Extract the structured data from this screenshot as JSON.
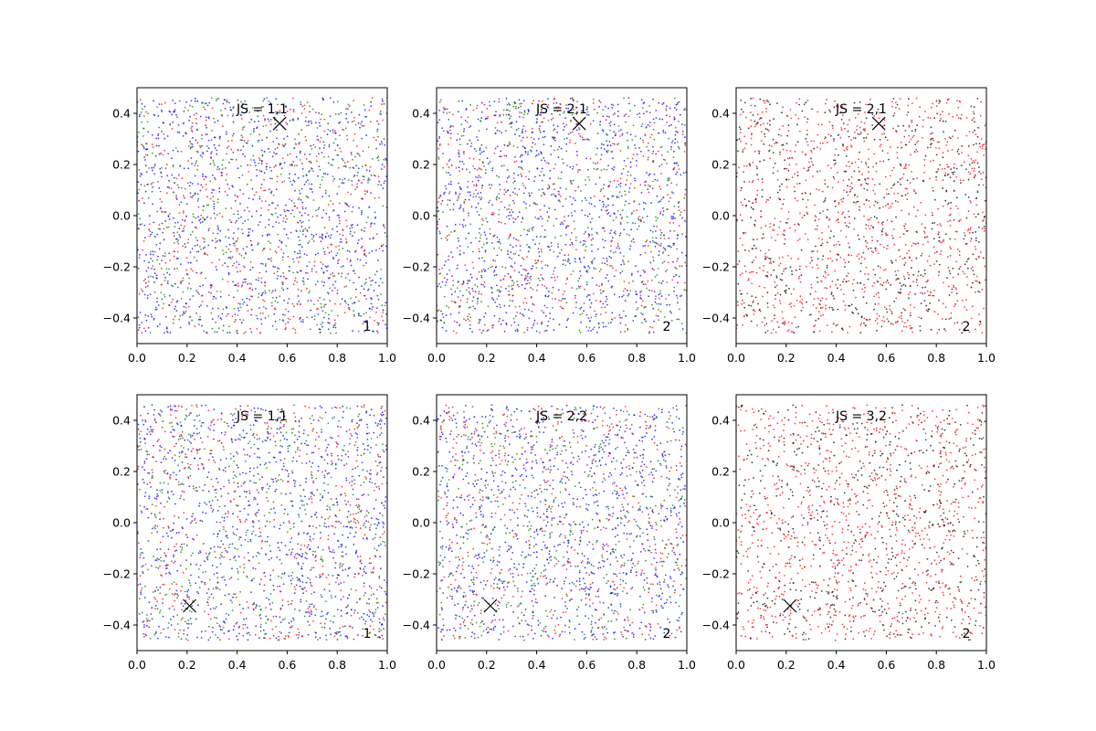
{
  "figure": {
    "layout": {
      "rows": 2,
      "cols": 3
    },
    "series_colors": {
      "blue": "#0000ff",
      "green": "#008000",
      "red": "#ff0000",
      "black": "#000000"
    }
  },
  "chart_data": [
    {
      "type": "scatter",
      "title": "JS = 1,1",
      "annotation": "1",
      "xlim": [
        0.0,
        1.0
      ],
      "ylim": [
        -0.5,
        0.5
      ],
      "xticks": [
        "0.0",
        "0.2",
        "0.4",
        "0.6",
        "0.8",
        "1.0"
      ],
      "yticks": [
        "-0.4",
        "-0.2",
        "0.0",
        "0.2",
        "0.4"
      ],
      "marker": {
        "x": 0.57,
        "y": 0.36
      },
      "series": [
        {
          "color": "#0000ff",
          "count": 1000
        },
        {
          "color": "#ff0000",
          "count": 500
        },
        {
          "color": "#008000",
          "count": 500
        }
      ]
    },
    {
      "type": "scatter",
      "title": "JS = 2,1",
      "annotation": "2",
      "xlim": [
        0.0,
        1.0
      ],
      "ylim": [
        -0.5,
        0.5
      ],
      "xticks": [
        "0.0",
        "0.2",
        "0.4",
        "0.6",
        "0.8",
        "1.0"
      ],
      "yticks": [
        "-0.4",
        "-0.2",
        "0.0",
        "0.2",
        "0.4"
      ],
      "marker": {
        "x": 0.57,
        "y": 0.36
      },
      "series": [
        {
          "color": "#0000ff",
          "count": 1000
        },
        {
          "color": "#ff0000",
          "count": 500
        },
        {
          "color": "#008000",
          "count": 500
        }
      ]
    },
    {
      "type": "scatter",
      "title": "JS = 2,1",
      "annotation": "2",
      "xlim": [
        0.0,
        1.0
      ],
      "ylim": [
        -0.5,
        0.5
      ],
      "xticks": [
        "0.0",
        "0.2",
        "0.4",
        "0.6",
        "0.8",
        "1.0"
      ],
      "yticks": [
        "-0.4",
        "-0.2",
        "0.0",
        "0.2",
        "0.4"
      ],
      "marker": {
        "x": 0.57,
        "y": 0.36
      },
      "series": [
        {
          "color": "#ff0000",
          "count": 1000
        },
        {
          "color": "#000000",
          "count": 600
        }
      ]
    },
    {
      "type": "scatter",
      "title": "JS = 1,1",
      "annotation": "1",
      "xlim": [
        0.0,
        1.0
      ],
      "ylim": [
        -0.5,
        0.5
      ],
      "xticks": [
        "0.0",
        "0.2",
        "0.4",
        "0.6",
        "0.8",
        "1.0"
      ],
      "yticks": [
        "-0.4",
        "-0.2",
        "0.0",
        "0.2",
        "0.4"
      ],
      "marker": {
        "x": 0.21,
        "y": -0.325
      },
      "series": [
        {
          "color": "#0000ff",
          "count": 1000
        },
        {
          "color": "#ff0000",
          "count": 500
        },
        {
          "color": "#008000",
          "count": 500
        }
      ]
    },
    {
      "type": "scatter",
      "title": "JS = 2,2",
      "annotation": "2",
      "xlim": [
        0.0,
        1.0
      ],
      "ylim": [
        -0.5,
        0.5
      ],
      "xticks": [
        "0.0",
        "0.2",
        "0.4",
        "0.6",
        "0.8",
        "1.0"
      ],
      "yticks": [
        "-0.4",
        "-0.2",
        "0.0",
        "0.2",
        "0.4"
      ],
      "marker": {
        "x": 0.215,
        "y": -0.325
      },
      "series": [
        {
          "color": "#0000ff",
          "count": 1000
        },
        {
          "color": "#ff0000",
          "count": 500
        },
        {
          "color": "#008000",
          "count": 500
        }
      ]
    },
    {
      "type": "scatter",
      "title": "JS = 3,2",
      "annotation": "2",
      "xlim": [
        0.0,
        1.0
      ],
      "ylim": [
        -0.5,
        0.5
      ],
      "xticks": [
        "0.0",
        "0.2",
        "0.4",
        "0.6",
        "0.8",
        "1.0"
      ],
      "yticks": [
        "-0.4",
        "-0.2",
        "0.0",
        "0.2",
        "0.4"
      ],
      "marker": {
        "x": 0.215,
        "y": -0.325
      },
      "series": [
        {
          "color": "#ff0000",
          "count": 1000
        },
        {
          "color": "#000000",
          "count": 600
        }
      ]
    }
  ]
}
